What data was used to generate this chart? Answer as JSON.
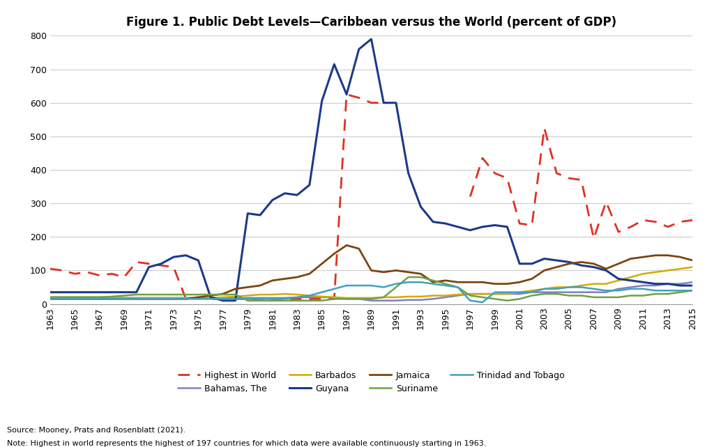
{
  "title": "Figure 1. Public Debt Levels—Caribbean versus the World (percent of GDP)",
  "years": [
    1963,
    1964,
    1965,
    1966,
    1967,
    1968,
    1969,
    1970,
    1971,
    1972,
    1973,
    1974,
    1975,
    1976,
    1977,
    1978,
    1979,
    1980,
    1981,
    1982,
    1983,
    1984,
    1985,
    1986,
    1987,
    1988,
    1989,
    1990,
    1991,
    1992,
    1993,
    1994,
    1995,
    1996,
    1997,
    1998,
    1999,
    2000,
    2001,
    2002,
    2003,
    2004,
    2005,
    2006,
    2007,
    2008,
    2009,
    2010,
    2011,
    2012,
    2013,
    2014,
    2015
  ],
  "highest_in_world": [
    105,
    100,
    90,
    95,
    85,
    90,
    80,
    125,
    120,
    115,
    110,
    15,
    20,
    15,
    15,
    15,
    15,
    15,
    15,
    15,
    15,
    15,
    15,
    15,
    625,
    615,
    600,
    600,
    null,
    null,
    null,
    null,
    null,
    null,
    320,
    435,
    390,
    375,
    240,
    235,
    525,
    390,
    375,
    370,
    195,
    305,
    215,
    230,
    250,
    245,
    230,
    245,
    250
  ],
  "bahamas": [
    20,
    20,
    20,
    20,
    20,
    20,
    18,
    18,
    18,
    18,
    18,
    18,
    18,
    18,
    18,
    18,
    18,
    18,
    18,
    18,
    20,
    20,
    20,
    20,
    15,
    15,
    10,
    10,
    10,
    12,
    12,
    15,
    20,
    25,
    30,
    30,
    30,
    30,
    30,
    35,
    35,
    35,
    35,
    35,
    35,
    35,
    45,
    50,
    55,
    55,
    60,
    60,
    65
  ],
  "barbados": [
    20,
    20,
    20,
    20,
    20,
    20,
    18,
    18,
    18,
    18,
    18,
    18,
    18,
    18,
    20,
    22,
    25,
    28,
    28,
    30,
    28,
    25,
    22,
    20,
    18,
    18,
    18,
    20,
    20,
    22,
    22,
    25,
    25,
    28,
    30,
    30,
    30,
    30,
    35,
    40,
    45,
    50,
    50,
    55,
    60,
    60,
    70,
    80,
    90,
    95,
    100,
    105,
    110
  ],
  "guyana": [
    35,
    35,
    35,
    35,
    35,
    35,
    35,
    35,
    110,
    120,
    140,
    145,
    130,
    20,
    10,
    10,
    270,
    265,
    310,
    330,
    325,
    355,
    605,
    715,
    625,
    760,
    790,
    600,
    600,
    390,
    290,
    245,
    240,
    230,
    220,
    230,
    235,
    230,
    120,
    120,
    135,
    130,
    125,
    115,
    110,
    100,
    75,
    70,
    65,
    60,
    60,
    55,
    55
  ],
  "jamaica": [
    15,
    15,
    15,
    15,
    15,
    15,
    15,
    15,
    15,
    15,
    15,
    15,
    20,
    25,
    30,
    45,
    50,
    55,
    70,
    75,
    80,
    90,
    120,
    150,
    175,
    165,
    100,
    95,
    100,
    95,
    90,
    65,
    70,
    65,
    65,
    65,
    60,
    60,
    65,
    75,
    100,
    110,
    120,
    125,
    120,
    105,
    120,
    135,
    140,
    145,
    145,
    140,
    130
  ],
  "suriname": [
    20,
    20,
    20,
    20,
    20,
    22,
    25,
    28,
    28,
    28,
    28,
    28,
    28,
    28,
    28,
    28,
    10,
    10,
    10,
    10,
    10,
    10,
    10,
    15,
    15,
    15,
    15,
    20,
    50,
    80,
    80,
    70,
    60,
    50,
    25,
    20,
    15,
    10,
    15,
    25,
    30,
    30,
    25,
    25,
    20,
    20,
    20,
    25,
    25,
    30,
    30,
    35,
    40
  ],
  "trinidad": [
    15,
    15,
    15,
    15,
    15,
    15,
    15,
    15,
    15,
    15,
    15,
    15,
    15,
    15,
    15,
    15,
    15,
    15,
    15,
    15,
    20,
    25,
    35,
    45,
    55,
    55,
    55,
    50,
    60,
    65,
    65,
    60,
    55,
    50,
    10,
    5,
    35,
    35,
    35,
    35,
    45,
    45,
    50,
    50,
    45,
    40,
    40,
    45,
    45,
    40,
    40,
    40,
    40
  ],
  "colors": {
    "highest_in_world": "#e03020",
    "bahamas": "#8080c0",
    "barbados": "#d4aa00",
    "guyana": "#1a3a8a",
    "jamaica": "#7a4510",
    "suriname": "#70a040",
    "trinidad": "#40a0c0"
  },
  "source_text": "Source: Mooney, Prats and Rosenblatt (2021).",
  "note_text": "Note: Highest in world represents the highest of 197 countries for which data were available continuously starting in 1963.",
  "ylim": [
    0,
    800
  ],
  "yticks": [
    0,
    100,
    200,
    300,
    400,
    500,
    600,
    700,
    800
  ]
}
